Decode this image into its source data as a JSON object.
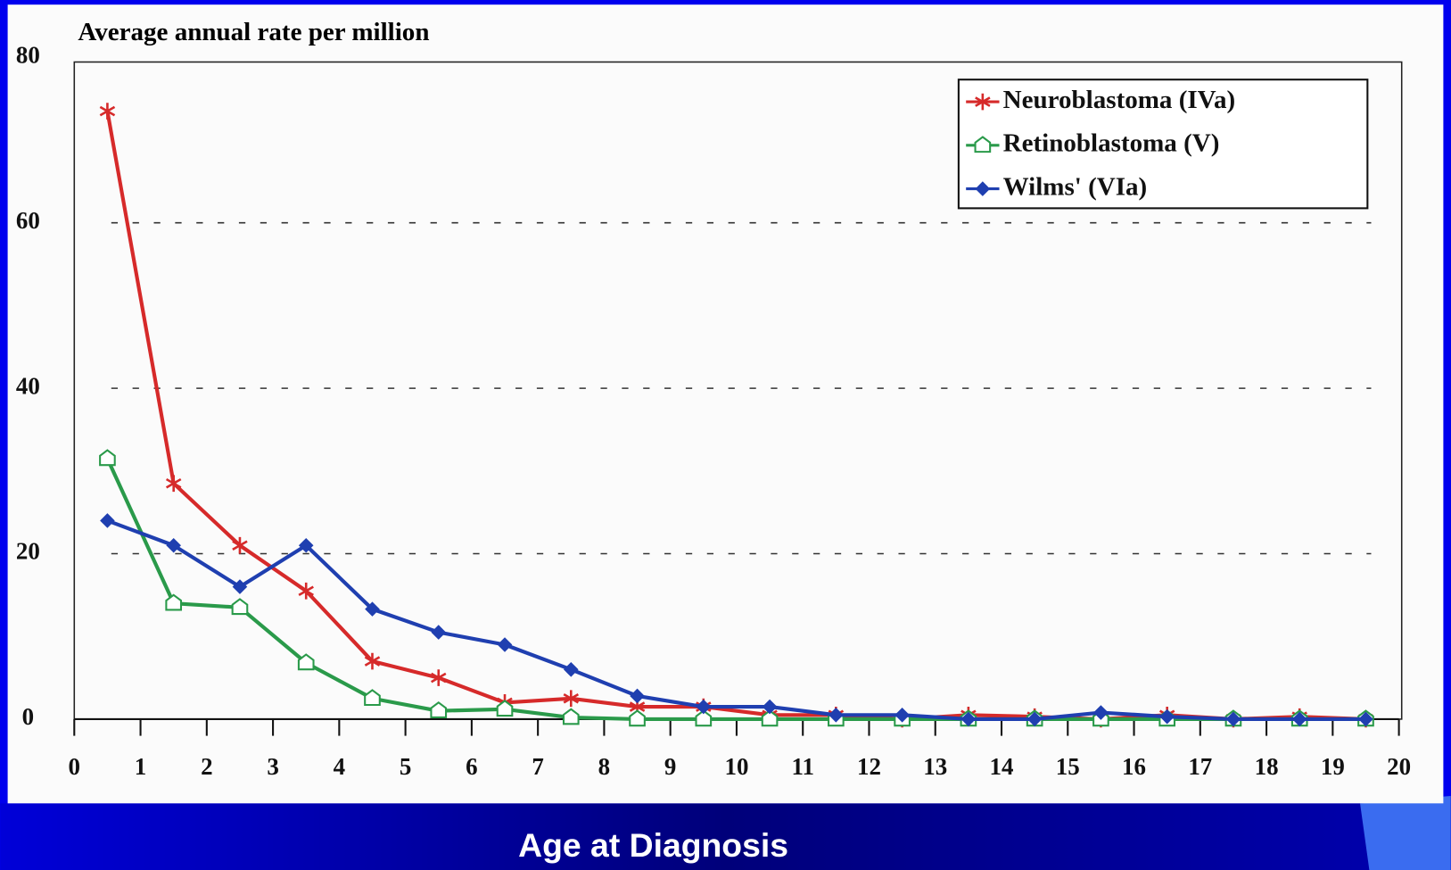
{
  "chart_data": {
    "type": "line",
    "title": "Average annual rate per million",
    "x_label": "Age at Diagnosis",
    "x": [
      0.5,
      1.5,
      2.5,
      3.5,
      4.5,
      5.5,
      6.5,
      7.5,
      8.5,
      9.5,
      10.5,
      11.5,
      12.5,
      13.5,
      14.5,
      15.5,
      16.5,
      17.5,
      18.5,
      19.5
    ],
    "series": [
      {
        "name": "Neuroblastoma (IVa)",
        "color": "#d62a2a",
        "marker": "star",
        "values": [
          73.5,
          28.5,
          21,
          15.5,
          7,
          5,
          2,
          2.5,
          1.5,
          1.5,
          0.5,
          0.5,
          0,
          0.5,
          0.3,
          0,
          0.5,
          0,
          0.3,
          0
        ]
      },
      {
        "name": "Retinoblastoma (V)",
        "color": "#2a9a4a",
        "marker": "square",
        "values": [
          31.5,
          14,
          13.5,
          6.8,
          2.5,
          1,
          1.2,
          0.2,
          0,
          0,
          0,
          0,
          0,
          0,
          0,
          0,
          0,
          0,
          0,
          0
        ]
      },
      {
        "name": "Wilms' (VIa)",
        "color": "#1f3fb0",
        "marker": "diamond",
        "values": [
          24,
          21,
          16,
          21,
          13.3,
          10.5,
          9,
          6,
          2.8,
          1.5,
          1.5,
          0.5,
          0.5,
          0,
          0,
          0.8,
          0.3,
          0,
          0,
          0
        ]
      }
    ],
    "xlim": [
      0,
      20
    ],
    "xticks": [
      0,
      1,
      2,
      3,
      4,
      5,
      6,
      7,
      8,
      9,
      10,
      11,
      12,
      13,
      14,
      15,
      16,
      17,
      18,
      19,
      20
    ],
    "ylim": [
      0,
      80
    ],
    "yticks": [
      0,
      20,
      40,
      60,
      80
    ],
    "grid": true,
    "legend": "upper right"
  }
}
